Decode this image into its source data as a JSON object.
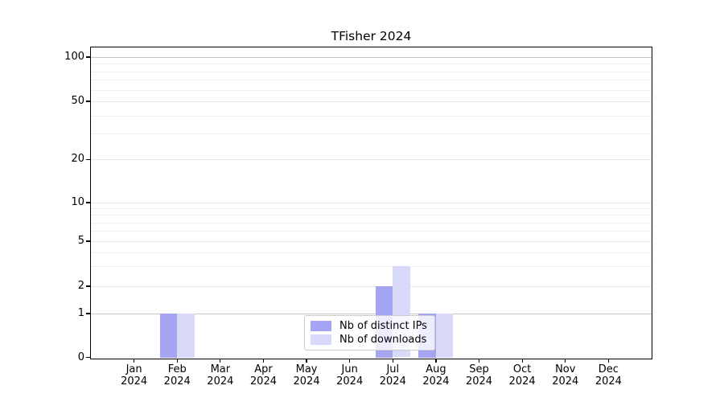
{
  "title": "TFisher 2024",
  "colors": {
    "distinct_ips": "#a4a4f2",
    "downloads": "#d8d8f8",
    "grid_strong": "#c6c6c6",
    "grid_light": "#e9e9e9",
    "spine": "#000000"
  },
  "chart_data": {
    "type": "bar",
    "title": "TFisher 2024",
    "xlabel": "",
    "ylabel": "",
    "categories": [
      [
        "Jan",
        "2024"
      ],
      [
        "Feb",
        "2024"
      ],
      [
        "Mar",
        "2024"
      ],
      [
        "Apr",
        "2024"
      ],
      [
        "May",
        "2024"
      ],
      [
        "Jun",
        "2024"
      ],
      [
        "Jul",
        "2024"
      ],
      [
        "Aug",
        "2024"
      ],
      [
        "Sep",
        "2024"
      ],
      [
        "Oct",
        "2024"
      ],
      [
        "Nov",
        "2024"
      ],
      [
        "Dec",
        "2024"
      ]
    ],
    "series": [
      {
        "name": "Nb of distinct IPs",
        "color": "#a4a4f2",
        "values": [
          0,
          1,
          0,
          0,
          0,
          0,
          2,
          1,
          0,
          0,
          0,
          0
        ]
      },
      {
        "name": "Nb of downloads",
        "color": "#d8d8f8",
        "values": [
          0,
          1,
          0,
          0,
          0,
          0,
          3,
          1,
          0,
          0,
          0,
          0
        ]
      }
    ],
    "yscale": "symlog",
    "ylim": [
      0,
      115
    ],
    "yticks": [
      0,
      1,
      2,
      5,
      10,
      20,
      50,
      100
    ],
    "ytick_labels": [
      "0",
      "1",
      "2",
      "5",
      "10",
      "20",
      "50",
      "100"
    ],
    "minor_yticks": [
      3,
      4,
      6,
      7,
      8,
      9,
      30,
      40,
      60,
      70,
      80,
      90
    ],
    "grid": true,
    "legend_position": "lower center inside"
  }
}
